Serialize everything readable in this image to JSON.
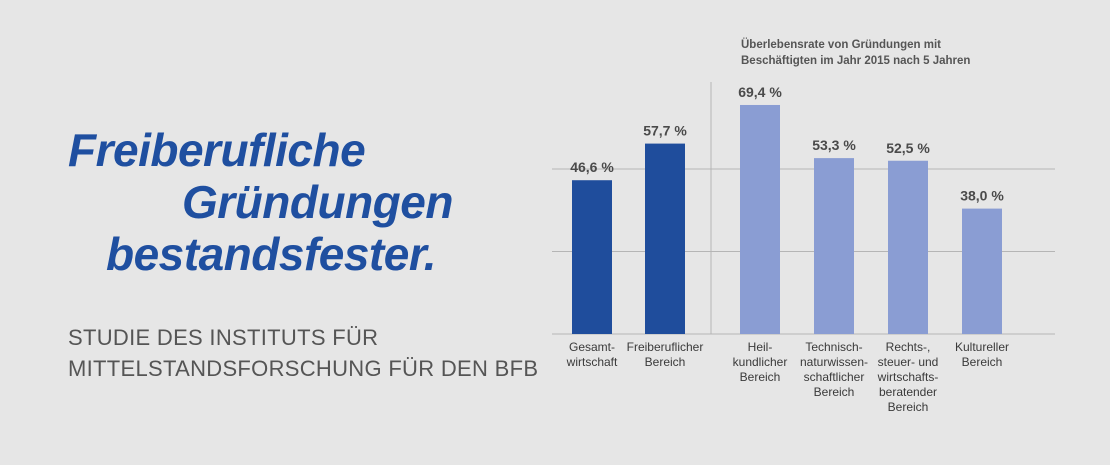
{
  "headline": [
    "Freiberufliche",
    "Gründungen",
    "bestandsfester."
  ],
  "subtitle": [
    "STUDIE DES INSTITUTS FÜR",
    "MITTELSTANDSFORSCHUNG FÜR DEN BFB"
  ],
  "colors": {
    "headline": "#1f4fa0",
    "dark_bar": "#1f4d9c",
    "light_bar": "#8a9dd3",
    "gridline": "#b5b5b5",
    "background": "#e6e6e6"
  },
  "chart_data": {
    "type": "bar",
    "title": "Überlebensrate von Gründungen mit\nBeschäftigten im Jahr 2015 nach 5 Jahren",
    "title_lines": [
      "Überlebensrate von Gründungen mit",
      "Beschäftigten im Jahr 2015 nach 5 Jahren"
    ],
    "categories": [
      "Gesamt-\nwirtschaft",
      "Freiberuflicher\nBereich",
      "Heil-\nkundlicher\nBereich",
      "Technisch-\nnaturwissen-\nschaftlicher\nBereich",
      "Rechts-,\nsteuer- und\nwirtschafts-\nberatender\nBereich",
      "Kultureller\nBereich"
    ],
    "values": [
      46.6,
      57.7,
      69.4,
      53.3,
      52.5,
      38.0
    ],
    "value_labels": [
      "46,6 %",
      "57,7 %",
      "69,4 %",
      "53,3 %",
      "52,5 %",
      "38,0 %"
    ],
    "bar_colors": [
      "#1f4d9c",
      "#1f4d9c",
      "#8a9dd3",
      "#8a9dd3",
      "#8a9dd3",
      "#8a9dd3"
    ],
    "ylim": [
      0,
      70
    ],
    "gridlines": [
      0,
      25,
      50
    ],
    "grid": true,
    "group_divider_after_index": 1
  }
}
